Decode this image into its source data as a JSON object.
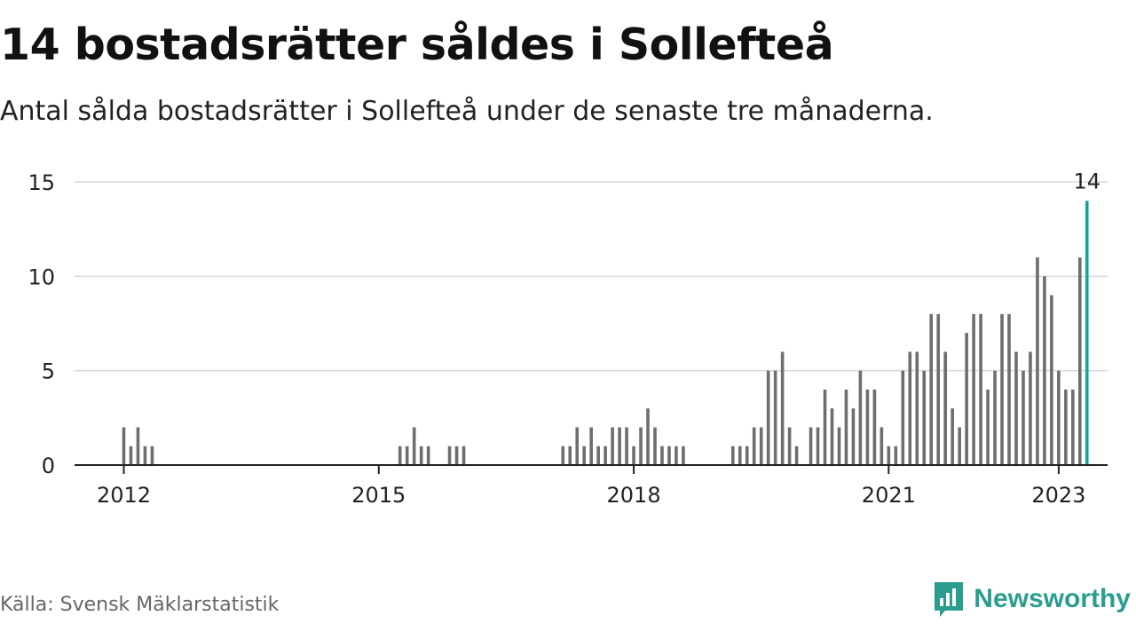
{
  "title": "14 bostadsrätter såldes i Sollefteå",
  "subtitle": "Antal sålda bostadsrätter i Sollefteå under de senaste tre månaderna.",
  "source": "Källa: Svensk Mäklarstatistik",
  "brand": "Newsworthy",
  "colors": {
    "bar": "#6e6e6e",
    "highlight": "#11a39a",
    "grid": "#d9d9d9",
    "axis": "#222222",
    "brand": "#2a9d8f"
  },
  "chart_data": {
    "type": "bar",
    "title": "14 bostadsrätter såldes i Sollefteå",
    "subtitle": "Antal sålda bostadsrätter i Sollefteå under de senaste tre månaderna.",
    "xlabel": "",
    "ylabel": "",
    "ylim": [
      0,
      15
    ],
    "yticks": [
      0,
      5,
      10,
      15
    ],
    "xticks": [
      "2012",
      "2015",
      "2018",
      "2021",
      "2023"
    ],
    "grid": true,
    "x_start": "2012-01",
    "x_end": "2023-01",
    "highlight_label": "14",
    "values": [
      2,
      1,
      2,
      1,
      1,
      0,
      0,
      0,
      0,
      0,
      0,
      0,
      0,
      0,
      0,
      0,
      0,
      0,
      0,
      0,
      0,
      0,
      0,
      0,
      0,
      0,
      0,
      0,
      0,
      0,
      0,
      0,
      0,
      0,
      0,
      0,
      0,
      0,
      0,
      1,
      1,
      2,
      1,
      1,
      0,
      0,
      1,
      1,
      1,
      0,
      0,
      0,
      0,
      0,
      0,
      0,
      0,
      0,
      0,
      0,
      0,
      0,
      1,
      1,
      2,
      1,
      2,
      1,
      1,
      2,
      2,
      2,
      1,
      2,
      3,
      2,
      1,
      1,
      1,
      1,
      0,
      0,
      0,
      0,
      0,
      0,
      1,
      1,
      1,
      2,
      2,
      5,
      5,
      6,
      2,
      1,
      0,
      2,
      2,
      4,
      3,
      2,
      4,
      3,
      5,
      4,
      4,
      2,
      1,
      1,
      5,
      6,
      6,
      5,
      8,
      8,
      6,
      3,
      2,
      7,
      8,
      8,
      4,
      5,
      8,
      8,
      6,
      5,
      6,
      11,
      10,
      9,
      5,
      4,
      4,
      11,
      14
    ]
  }
}
